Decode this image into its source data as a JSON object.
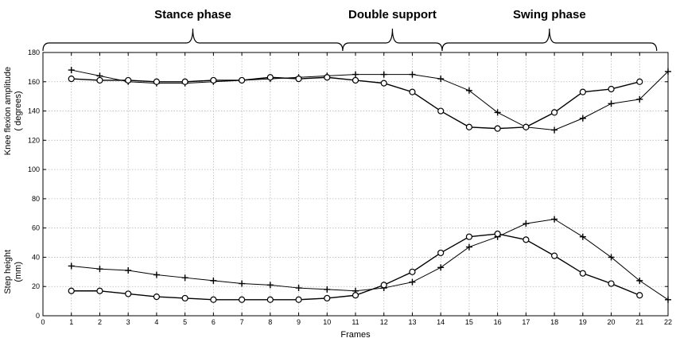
{
  "chart_data": {
    "type": "line",
    "phases": [
      {
        "label": "Stance phase",
        "x_start": 0,
        "x_end": 10.55
      },
      {
        "label": "Double support",
        "x_start": 10.55,
        "x_end": 14.05
      },
      {
        "label": "Swing phase",
        "x_start": 14.05,
        "x_end": 21.6
      }
    ],
    "xlabel": "Frames",
    "ylabel_upper": "Knee flexion amplitude",
    "ylabel_upper_unit": "( degrees)",
    "ylabel_lower": "Step height",
    "ylabel_lower_unit": "(mm)",
    "xlim": [
      0,
      22
    ],
    "ylim": [
      0,
      180
    ],
    "x_ticks": [
      0,
      1,
      2,
      3,
      4,
      5,
      6,
      7,
      8,
      9,
      10,
      11,
      12,
      13,
      14,
      15,
      16,
      17,
      18,
      19,
      20,
      21,
      22
    ],
    "y_ticks": [
      0,
      20,
      40,
      60,
      80,
      100,
      120,
      140,
      160,
      180
    ],
    "grid": true,
    "series": [
      {
        "group": "knee",
        "marker": "plus",
        "x": [
          1,
          2,
          3,
          4,
          5,
          6,
          7,
          8,
          9,
          10,
          11,
          12,
          13,
          14,
          15,
          16,
          17,
          18,
          19,
          20,
          21,
          22
        ],
        "values": [
          168,
          164,
          160,
          159,
          159,
          160,
          161,
          162,
          163,
          164,
          165,
          165,
          165,
          162,
          154,
          139,
          129,
          127,
          135,
          145,
          148,
          167
        ]
      },
      {
        "group": "knee",
        "marker": "circle",
        "x": [
          1,
          2,
          3,
          4,
          5,
          6,
          7,
          8,
          9,
          10,
          11,
          12,
          13,
          14,
          15,
          16,
          17,
          18,
          19,
          20,
          21
        ],
        "values": [
          162,
          161,
          161,
          160,
          160,
          161,
          161,
          163,
          162,
          163,
          161,
          159,
          153,
          140,
          129,
          128,
          129,
          139,
          153,
          155,
          160
        ]
      },
      {
        "group": "step",
        "marker": "plus",
        "x": [
          1,
          2,
          3,
          4,
          5,
          6,
          7,
          8,
          9,
          10,
          11,
          12,
          13,
          14,
          15,
          16,
          17,
          18,
          19,
          20,
          21,
          22
        ],
        "values": [
          34,
          32,
          31,
          28,
          26,
          24,
          22,
          21,
          19,
          18,
          17,
          19,
          23,
          33,
          47,
          54,
          63,
          66,
          54,
          40,
          24,
          11
        ]
      },
      {
        "group": "step",
        "marker": "circle",
        "x": [
          1,
          2,
          3,
          4,
          5,
          6,
          7,
          8,
          9,
          10,
          11,
          12,
          13,
          14,
          15,
          16,
          17,
          18,
          19,
          20,
          21
        ],
        "values": [
          17,
          17,
          15,
          13,
          12,
          11,
          11,
          11,
          11,
          12,
          14,
          21,
          30,
          43,
          54,
          56,
          52,
          41,
          29,
          22,
          14
        ]
      }
    ]
  }
}
